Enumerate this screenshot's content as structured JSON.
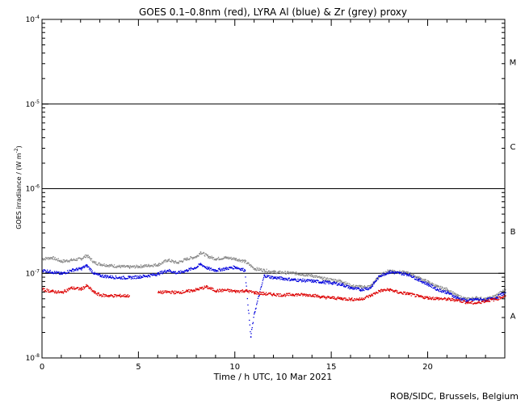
{
  "chart_data": {
    "type": "scatter",
    "title": "GOES 0.1–0.8nm (red), LYRA Al (blue) & Zr (grey) proxy",
    "xlabel": "Time / h UTC, 10 Mar 2021",
    "ylabel_main": "GOES irradiance / (W m",
    "ylabel_exp": "-2",
    "ylabel_close": ")",
    "credit": "ROB/SIDC, Brussels, Belgium",
    "xlim": [
      0,
      24
    ],
    "ylim": [
      1e-08,
      0.0001
    ],
    "yscale": "log",
    "x_ticks": [
      {
        "value": 0,
        "label": "0"
      },
      {
        "value": 5,
        "label": "5"
      },
      {
        "value": 10,
        "label": "10"
      },
      {
        "value": 15,
        "label": "15"
      },
      {
        "value": 20,
        "label": "20"
      }
    ],
    "y_ticks": [
      {
        "exp": -8,
        "base": "10",
        "sup": "-8"
      },
      {
        "exp": -7,
        "base": "10",
        "sup": "-7"
      },
      {
        "exp": -6,
        "base": "10",
        "sup": "-6"
      },
      {
        "exp": -5,
        "base": "10",
        "sup": "-5"
      },
      {
        "exp": -4,
        "base": "10",
        "sup": "-4"
      }
    ],
    "class_lines": [
      1e-07,
      1e-06,
      1e-05
    ],
    "flare_classes": [
      {
        "label": "A",
        "value": 3.16e-08
      },
      {
        "label": "B",
        "value": 3.16e-07
      },
      {
        "label": "C",
        "value": 3.16e-06
      },
      {
        "label": "M",
        "value": 3.16e-05
      }
    ],
    "series": [
      {
        "color": "#888888",
        "x": [
          0,
          0.5,
          1,
          1.5,
          2,
          2.3,
          2.7,
          3,
          3.5,
          4,
          4.5,
          5,
          5.5,
          6,
          6.5,
          7,
          7.5,
          8,
          8.2,
          8.6,
          9,
          9.5,
          10,
          10.5,
          11,
          11.5,
          12,
          12.5,
          13,
          14,
          14.5,
          15,
          15.5,
          16,
          16.5,
          17,
          17.5,
          18,
          18.5,
          19,
          19.5,
          20,
          20.5,
          21,
          21.5,
          22,
          22.5,
          23,
          23.5,
          24
        ],
        "y": [
          1.5e-07,
          1.55e-07,
          1.4e-07,
          1.45e-07,
          1.5e-07,
          1.65e-07,
          1.35e-07,
          1.3e-07,
          1.25e-07,
          1.22e-07,
          1.2e-07,
          1.22e-07,
          1.25e-07,
          1.28e-07,
          1.45e-07,
          1.35e-07,
          1.5e-07,
          1.6e-07,
          1.8e-07,
          1.6e-07,
          1.5e-07,
          1.55e-07,
          1.5e-07,
          1.4e-07,
          1.15e-07,
          1.1e-07,
          1.05e-07,
          1.03e-07,
          1.02e-07,
          9.5e-08,
          8.8e-08,
          8.5e-08,
          8.2e-08,
          7.2e-08,
          7e-08,
          7.1e-08,
          9.5e-08,
          1.1e-07,
          1.05e-07,
          1.02e-07,
          9e-08,
          8e-08,
          7e-08,
          6.5e-08,
          5.5e-08,
          5e-08,
          5.2e-08,
          5e-08,
          5.5e-08,
          6.5e-08
        ]
      },
      {
        "color": "#0000dd",
        "x": [
          0,
          0.5,
          1,
          1.5,
          2,
          2.3,
          2.7,
          3,
          3.5,
          4,
          4.5,
          5,
          5.5,
          6,
          6.5,
          7,
          7.5,
          8,
          8.2,
          8.6,
          9,
          9.5,
          10,
          10.5,
          10.8,
          11,
          11.5,
          12,
          12.5,
          13,
          14,
          14.5,
          15,
          15.5,
          16,
          16.5,
          17,
          17.5,
          18,
          18.5,
          19,
          19.5,
          20,
          20.5,
          21,
          21.5,
          22,
          22.5,
          23,
          23.5,
          24
        ],
        "y": [
          1.1e-07,
          1.05e-07,
          1e-07,
          1.1e-07,
          1.15e-07,
          1.25e-07,
          1e-07,
          9.5e-08,
          9.2e-08,
          9e-08,
          9e-08,
          9.2e-08,
          9.5e-08,
          1e-07,
          1.1e-07,
          1.02e-07,
          1.1e-07,
          1.2e-07,
          1.3e-07,
          1.15e-07,
          1.1e-07,
          1.15e-07,
          1.2e-07,
          1.1e-07,
          1.8e-08,
          3.5e-08,
          9.5e-08,
          9e-08,
          8.8e-08,
          8.5e-08,
          8.2e-08,
          8e-08,
          7.8e-08,
          7.5e-08,
          6.8e-08,
          6.5e-08,
          6.8e-08,
          9.5e-08,
          1.05e-07,
          1.02e-07,
          9.8e-08,
          8.5e-08,
          7.5e-08,
          6.5e-08,
          6e-08,
          5.2e-08,
          4.8e-08,
          5e-08,
          4.9e-08,
          5.2e-08,
          6e-08
        ]
      },
      {
        "color": "#dd0000",
        "x": [
          0,
          0.5,
          1,
          1.5,
          2,
          2.3,
          2.7,
          3,
          3.5,
          4,
          4.5,
          6,
          6.5,
          7,
          7.5,
          8,
          8.5,
          9,
          9.5,
          10,
          10.5,
          11,
          11.5,
          12,
          12.5,
          13,
          14,
          14.5,
          15,
          15.5,
          16,
          16.5,
          17,
          17.5,
          18,
          18.5,
          19,
          19.5,
          20,
          20.5,
          21,
          21.5,
          22,
          22.5,
          23,
          23.5,
          24
        ],
        "y": [
          6.5e-08,
          6.2e-08,
          6e-08,
          6.8e-08,
          6.6e-08,
          7.2e-08,
          6e-08,
          5.6e-08,
          5.5e-08,
          5.5e-08,
          5.5e-08,
          6e-08,
          6.1e-08,
          6e-08,
          6.2e-08,
          6.5e-08,
          7e-08,
          6.3e-08,
          6.4e-08,
          6.2e-08,
          6.3e-08,
          6e-08,
          5.8e-08,
          5.7e-08,
          5.6e-08,
          5.7e-08,
          5.6e-08,
          5.3e-08,
          5.2e-08,
          5.1e-08,
          5e-08,
          5e-08,
          5.5e-08,
          6.3e-08,
          6.5e-08,
          6e-08,
          5.8e-08,
          5.4e-08,
          5.2e-08,
          5.1e-08,
          5e-08,
          4.9e-08,
          4.6e-08,
          4.5e-08,
          4.8e-08,
          5e-08,
          5.5e-08
        ]
      }
    ]
  }
}
